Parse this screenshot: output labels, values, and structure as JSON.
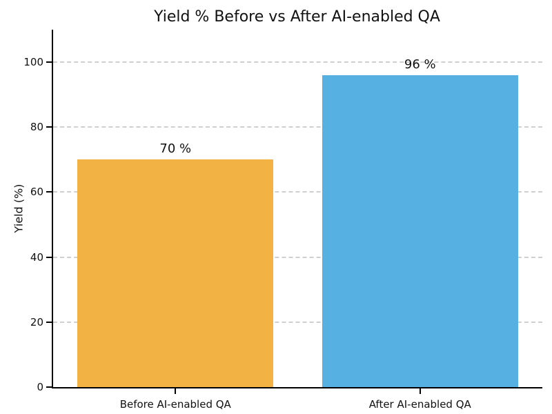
{
  "chart_data": {
    "type": "bar",
    "title": "Yield % Before vs After AI-enabled QA",
    "xlabel": "",
    "ylabel": "Yield (%)",
    "categories": [
      "Before AI-enabled QA",
      "After AI-enabled QA"
    ],
    "values": [
      70,
      96
    ],
    "value_labels": [
      "70 %",
      "96 %"
    ],
    "bar_colors": [
      "#F2B344",
      "#56B1E2"
    ],
    "yticks": [
      0,
      20,
      40,
      60,
      80,
      100
    ],
    "ytick_labels": [
      "0",
      "20",
      "40",
      "60",
      "80",
      "100"
    ],
    "ylim": [
      0,
      110
    ],
    "grid": "horizontal-dashed",
    "legend": "none"
  },
  "colors": {
    "bar_before": "#F2B344",
    "bar_after": "#56B1E2",
    "gridline": "#cfcfcf",
    "axis": "#000000",
    "text": "#111111",
    "background": "#ffffff"
  }
}
